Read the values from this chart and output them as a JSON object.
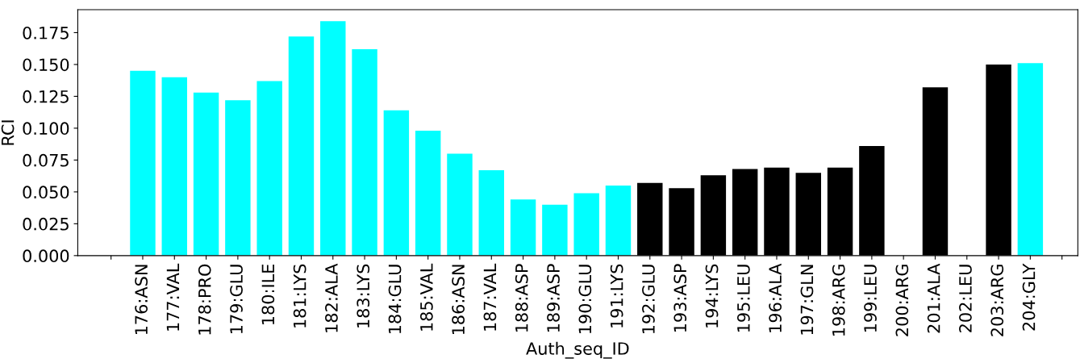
{
  "chart_data": {
    "type": "bar",
    "xlabel": "Auth_seq_ID",
    "ylabel": "RCI",
    "categories": [
      null,
      "176:ASN",
      "177:VAL",
      "178:PRO",
      "179:GLU",
      "180:ILE",
      "181:LYS",
      "182:ALA",
      "183:LYS",
      "184:GLU",
      "185:VAL",
      "186:ASN",
      "187:VAL",
      "188:ASP",
      "189:ASP",
      "190:GLU",
      "191:LYS",
      "192:GLU",
      "193:ASP",
      "194:LYS",
      "195:LEU",
      "196:ALA",
      "197:GLN",
      "198:ARG",
      "199:LEU",
      "200:ARG",
      "201:ALA",
      "202:LEU",
      "203:ARG",
      "204:GLY",
      null
    ],
    "values": [
      null,
      0.145,
      0.14,
      0.128,
      0.122,
      0.137,
      0.172,
      0.184,
      0.162,
      0.114,
      0.098,
      0.08,
      0.067,
      0.044,
      0.04,
      0.049,
      0.055,
      0.057,
      0.053,
      0.063,
      0.068,
      0.069,
      0.065,
      0.069,
      0.086,
      0,
      0.132,
      0,
      0.15,
      0.151,
      null
    ],
    "colors": [
      "#00ffff",
      "#00ffff",
      "#00ffff",
      "#00ffff",
      "#00ffff",
      "#00ffff",
      "#00ffff",
      "#00ffff",
      "#00ffff",
      "#00ffff",
      "#00ffff",
      "#00ffff",
      "#00ffff",
      "#00ffff",
      "#00ffff",
      "#00ffff",
      "#00ffff",
      "#000000",
      "#000000",
      "#000000",
      "#000000",
      "#000000",
      "#000000",
      "#000000",
      "#000000",
      "#000000",
      "#000000",
      "#000000",
      "#000000",
      "#00ffff",
      "#00ffff"
    ],
    "ylim": [
      0,
      0.193
    ],
    "yticks": [
      {
        "value": 0,
        "label": "0.000"
      },
      {
        "value": 0.025,
        "label": "0.025"
      },
      {
        "value": 0.05,
        "label": "0.050"
      },
      {
        "value": 0.075,
        "label": "0.075"
      },
      {
        "value": 0.1,
        "label": "0.100"
      },
      {
        "value": 0.125,
        "label": "0.125"
      },
      {
        "value": 0.15,
        "label": "0.150"
      },
      {
        "value": 0.175,
        "label": "0.175"
      }
    ],
    "grid": false
  }
}
